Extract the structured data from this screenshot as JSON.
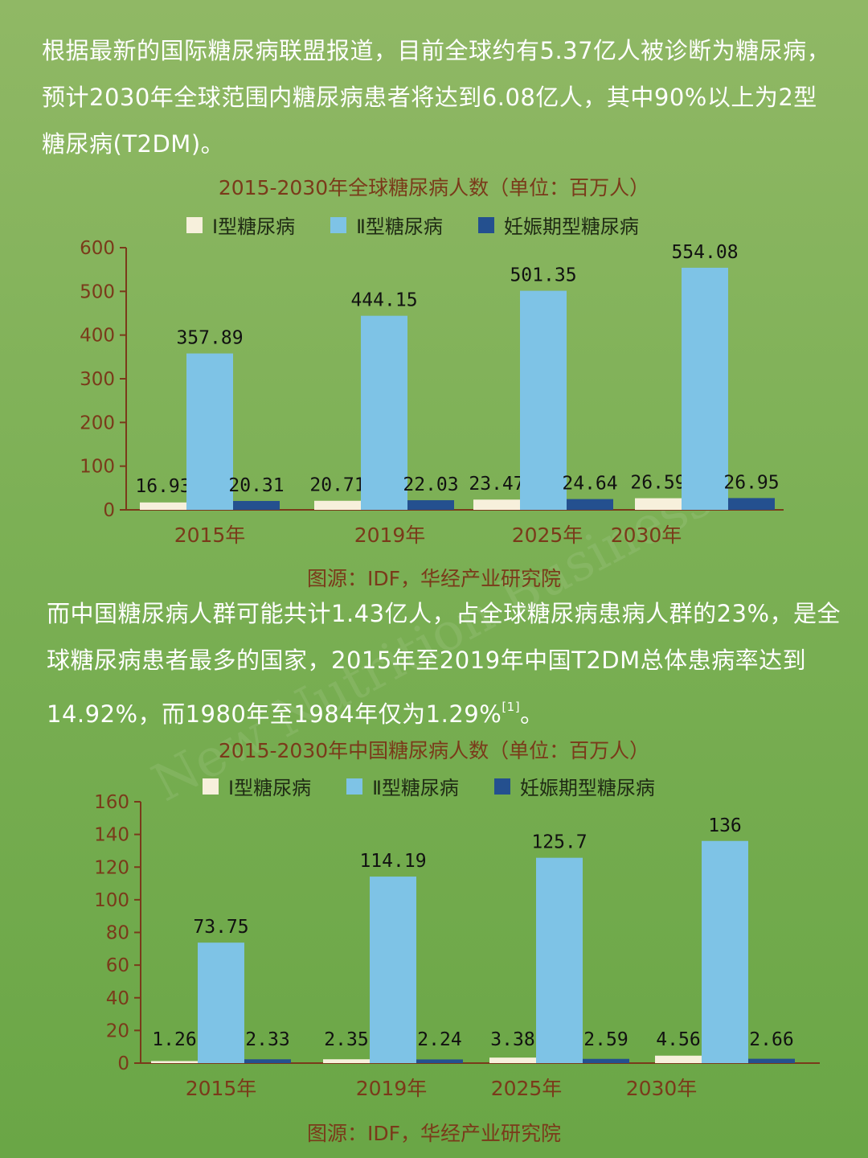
{
  "para1": "根据最新的国际糖尿病联盟报道，目前全球约有5.37亿人被诊断为糖尿病，预计2030年全球范围内糖尿病患者将达到6.08亿人，其中90%以上为2型糖尿病(T2DM)。",
  "para2": {
    "text": "而中国糖尿病人群可能共计1.43亿人，占全球糖尿病患病人群的23%，是全球糖尿病患者最多的国家，2015年至2019年中国T2DM总体患病率达到14.92%，而1980年至1984年仅为1.29%",
    "ref": "[1]",
    "end": "。"
  },
  "watermark": "New Nutrition Business",
  "colors": {
    "type1": "#f7f0dc",
    "type2": "#7ec3e6",
    "gest": "#24508f",
    "axis": "#7a3a1a"
  },
  "chart_data": [
    {
      "type": "bar",
      "title": "2015-2030年全球糖尿病人数（单位：百万人）",
      "categories": [
        "2015年",
        "2019年",
        "2025年",
        "2030年"
      ],
      "series": [
        {
          "name": "Ⅰ型糖尿病",
          "values": [
            16.93,
            20.71,
            23.47,
            26.59
          ]
        },
        {
          "name": "Ⅱ型糖尿病",
          "values": [
            357.89,
            444.15,
            501.35,
            554.08
          ]
        },
        {
          "name": "妊娠期型糖尿病",
          "values": [
            20.31,
            22.03,
            24.64,
            26.95
          ]
        }
      ],
      "value_labels": [
        [
          "16.93",
          "20.71",
          "23.47",
          "26.59"
        ],
        [
          "357.89",
          "444.15",
          "501.35",
          "554.08"
        ],
        [
          "20.31",
          "22.03",
          "24.64",
          "26.95"
        ]
      ],
      "ylim": [
        0,
        600
      ],
      "yticks": [
        0,
        100,
        200,
        300,
        400,
        500,
        600
      ],
      "legend": "top",
      "grid": false,
      "source": "图源：IDF，华经产业研究院"
    },
    {
      "type": "bar",
      "title": "2015-2030年中国糖尿病人数（单位：百万人）",
      "categories": [
        "2015年",
        "2019年",
        "2025年",
        "2030年"
      ],
      "series": [
        {
          "name": "Ⅰ型糖尿病",
          "values": [
            1.26,
            2.35,
            3.38,
            4.56
          ]
        },
        {
          "name": "Ⅱ型糖尿病",
          "values": [
            73.75,
            114.19,
            125.7,
            136
          ]
        },
        {
          "name": "妊娠期型糖尿病",
          "values": [
            2.33,
            2.24,
            2.59,
            2.66
          ]
        }
      ],
      "value_labels": [
        [
          "1.26",
          "2.35",
          "3.38",
          "4.56"
        ],
        [
          "73.75",
          "114.19",
          "125.7",
          "136"
        ],
        [
          "2.33",
          "2.24",
          "2.59",
          "2.66"
        ]
      ],
      "ylim": [
        0,
        160
      ],
      "yticks": [
        0,
        20,
        40,
        60,
        80,
        100,
        120,
        140,
        160
      ],
      "legend": "top",
      "grid": false,
      "source": "图源：IDF，华经产业研究院"
    }
  ]
}
